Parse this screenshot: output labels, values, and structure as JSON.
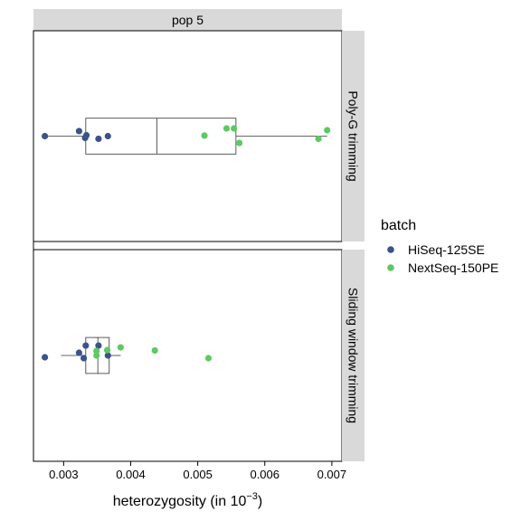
{
  "chart_data": {
    "type": "boxplot",
    "facet_top_label": "pop 5",
    "xlabel_main": "heterozygosity (in 10",
    "xlabel_sup": "−3",
    "xlabel_close": ")",
    "xlim": [
      0.00255,
      0.00715
    ],
    "x_ticks": [
      0.003,
      0.004,
      0.005,
      0.006,
      0.007
    ],
    "x_tick_labels": [
      "0.003",
      "0.004",
      "0.005",
      "0.006",
      "0.007"
    ],
    "legend": {
      "title": "batch",
      "position": "right",
      "entries": [
        {
          "label": "HiSeq-125SE",
          "color": "#3b528b"
        },
        {
          "label": "NextSeq-150PE",
          "color": "#5ec962"
        }
      ]
    },
    "panels": [
      {
        "strip_label": "Poly-G trimming",
        "box": {
          "whisker_low": 0.00272,
          "q1": 0.00333,
          "median": 0.00439,
          "q3": 0.00557,
          "whisker_high": 0.00693
        },
        "points": [
          {
            "x": 0.00272,
            "batch": "HiSeq-125SE",
            "jitter": 0.0
          },
          {
            "x": 0.00323,
            "batch": "HiSeq-125SE",
            "jitter": 0.28
          },
          {
            "x": 0.00334,
            "batch": "HiSeq-125SE",
            "jitter": 0.05
          },
          {
            "x": 0.00332,
            "batch": "HiSeq-125SE",
            "jitter": -0.1
          },
          {
            "x": 0.00352,
            "batch": "HiSeq-125SE",
            "jitter": -0.15
          },
          {
            "x": 0.00366,
            "batch": "HiSeq-125SE",
            "jitter": 0.0
          },
          {
            "x": 0.0051,
            "batch": "NextSeq-150PE",
            "jitter": 0.03
          },
          {
            "x": 0.00543,
            "batch": "NextSeq-150PE",
            "jitter": 0.43
          },
          {
            "x": 0.00554,
            "batch": "NextSeq-150PE",
            "jitter": 0.43
          },
          {
            "x": 0.00562,
            "batch": "NextSeq-150PE",
            "jitter": -0.38
          },
          {
            "x": 0.0068,
            "batch": "NextSeq-150PE",
            "jitter": -0.15
          },
          {
            "x": 0.00693,
            "batch": "NextSeq-150PE",
            "jitter": 0.33
          }
        ]
      },
      {
        "strip_label": "Sliding window trimming",
        "box": {
          "whisker_low": 0.00296,
          "q1": 0.00333,
          "median": 0.00351,
          "q3": 0.00368,
          "whisker_high": 0.00385
        },
        "points": [
          {
            "x": 0.00272,
            "batch": "HiSeq-125SE",
            "jitter": -0.1
          },
          {
            "x": 0.00323,
            "batch": "HiSeq-125SE",
            "jitter": 0.15
          },
          {
            "x": 0.0033,
            "batch": "HiSeq-125SE",
            "jitter": -0.15
          },
          {
            "x": 0.00333,
            "batch": "HiSeq-125SE",
            "jitter": 0.55
          },
          {
            "x": 0.00352,
            "batch": "HiSeq-125SE",
            "jitter": 0.55
          },
          {
            "x": 0.00366,
            "batch": "HiSeq-125SE",
            "jitter": 0.0
          },
          {
            "x": 0.00349,
            "batch": "NextSeq-150PE",
            "jitter": 0.25
          },
          {
            "x": 0.00349,
            "batch": "NextSeq-150PE",
            "jitter": 0.0
          },
          {
            "x": 0.00365,
            "batch": "NextSeq-150PE",
            "jitter": 0.3
          },
          {
            "x": 0.00385,
            "batch": "NextSeq-150PE",
            "jitter": 0.45
          },
          {
            "x": 0.00436,
            "batch": "NextSeq-150PE",
            "jitter": 0.28
          },
          {
            "x": 0.00516,
            "batch": "NextSeq-150PE",
            "jitter": -0.15
          }
        ]
      }
    ]
  }
}
